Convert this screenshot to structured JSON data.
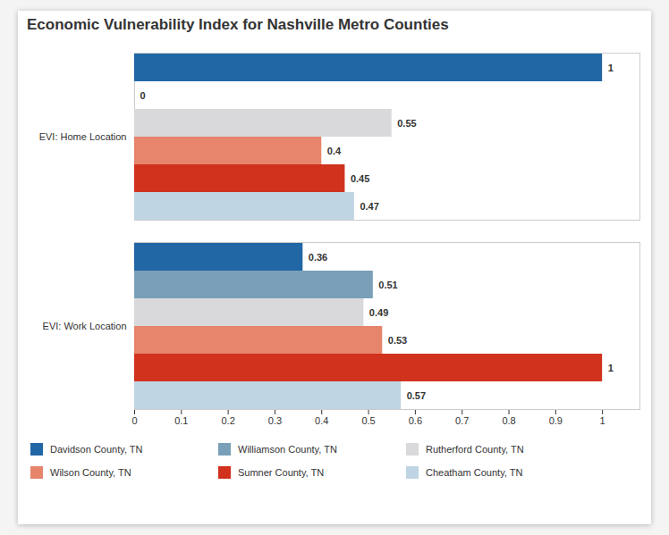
{
  "chart_data": {
    "type": "bar",
    "orientation": "horizontal",
    "title": "Economic Vulnerability Index for Nashville Metro Counties",
    "categories": [
      "EVI: Home Location",
      "EVI: Work Location"
    ],
    "series": [
      {
        "name": "Davidson County, TN",
        "color": "#2166a5",
        "values": [
          1,
          0.36
        ]
      },
      {
        "name": "Williamson County, TN",
        "color": "#7a9fb8",
        "values": [
          0,
          0.51
        ]
      },
      {
        "name": "Rutherford County, TN",
        "color": "#d9d9dc",
        "values": [
          0.55,
          0.49
        ]
      },
      {
        "name": "Wilson County, TN",
        "color": "#e6846c",
        "values": [
          0.4,
          0.53
        ]
      },
      {
        "name": "Sumner County, TN",
        "color": "#d0321d",
        "values": [
          0.45,
          1
        ]
      },
      {
        "name": "Cheatham County, TN",
        "color": "#c0d5e4",
        "values": [
          0.47,
          0.57
        ]
      }
    ],
    "xlim": [
      0,
      1.08
    ],
    "xticks": [
      0,
      0.1,
      0.2,
      0.3,
      0.4,
      0.5,
      0.6,
      0.7,
      0.8,
      0.9,
      1
    ],
    "data_labels": true,
    "grid": false,
    "legend": "bottom"
  }
}
